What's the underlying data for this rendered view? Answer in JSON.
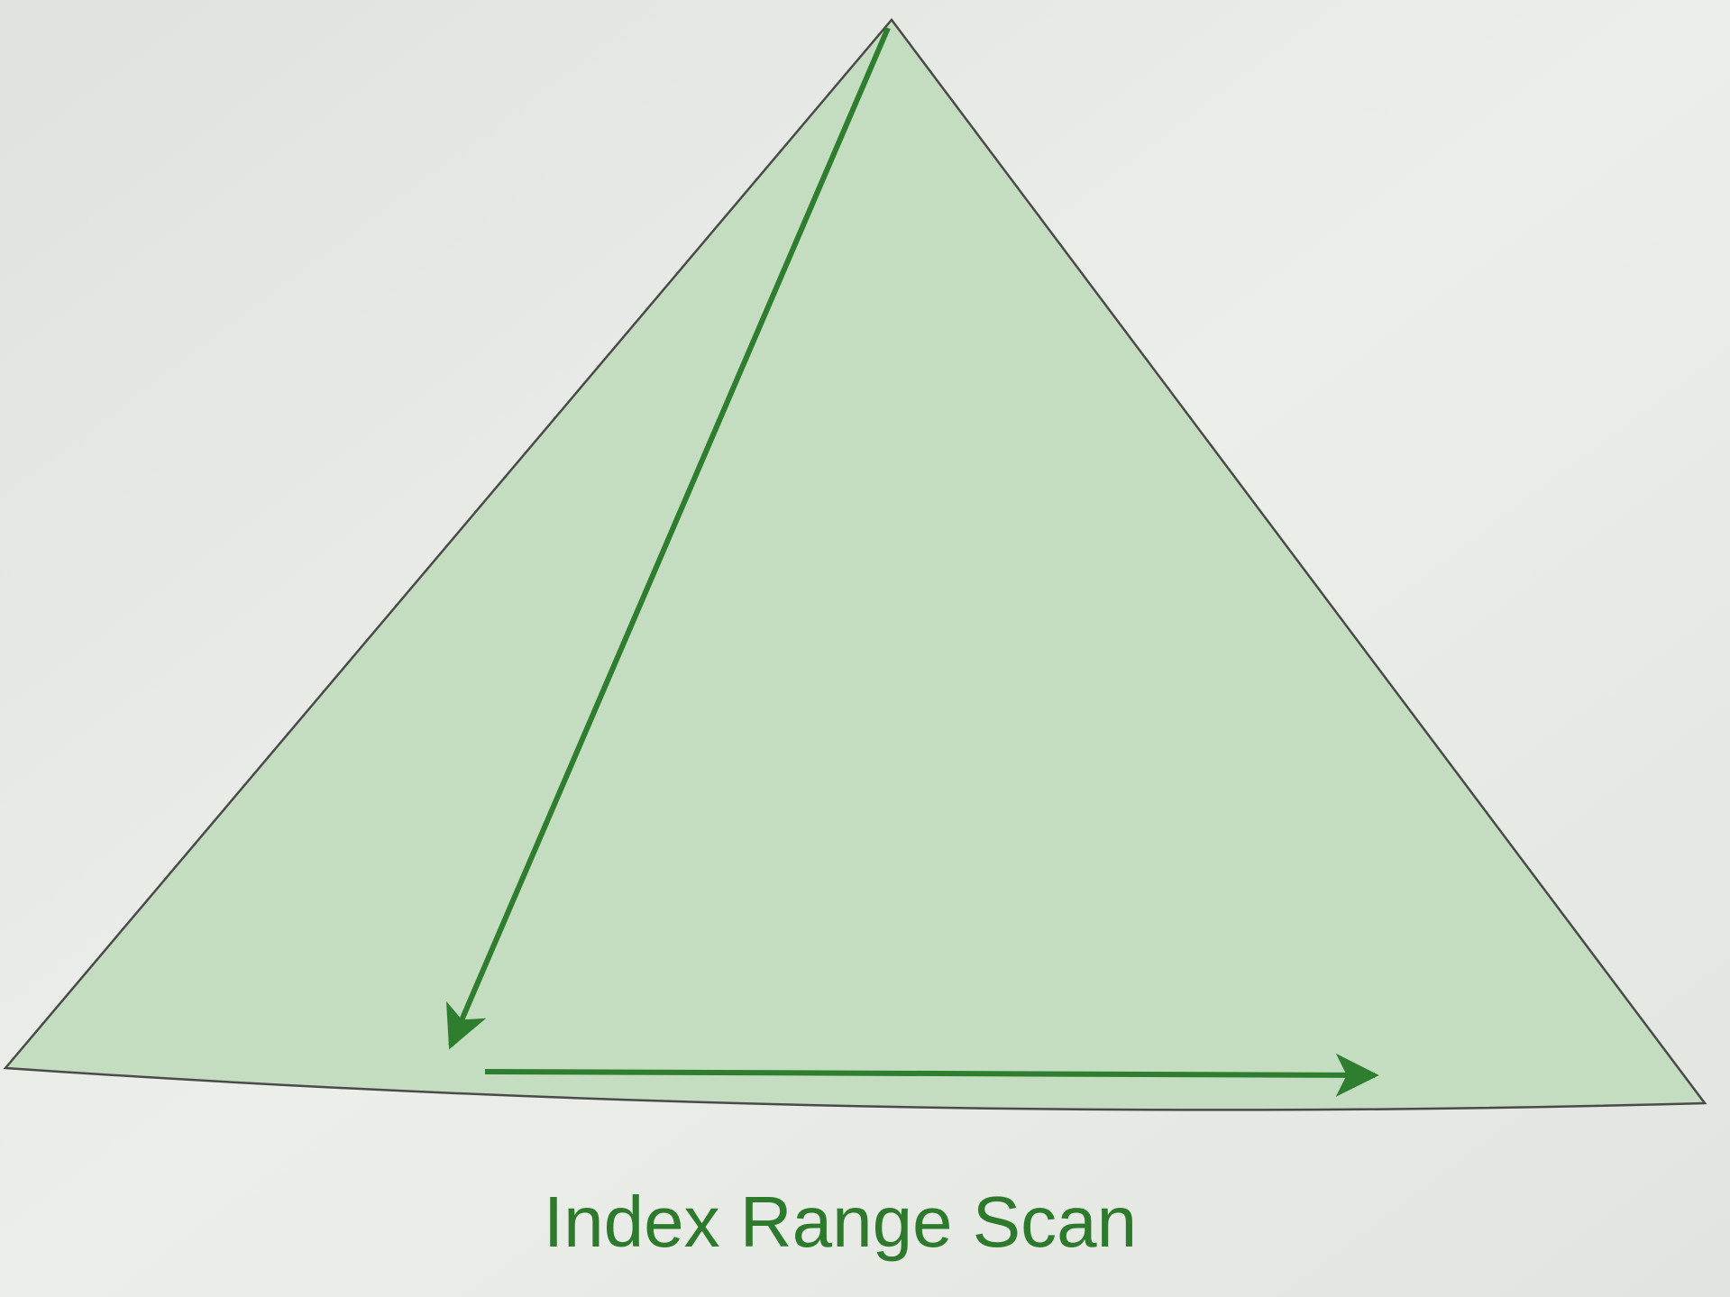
{
  "diagram": {
    "label": "Index Range Scan"
  }
}
